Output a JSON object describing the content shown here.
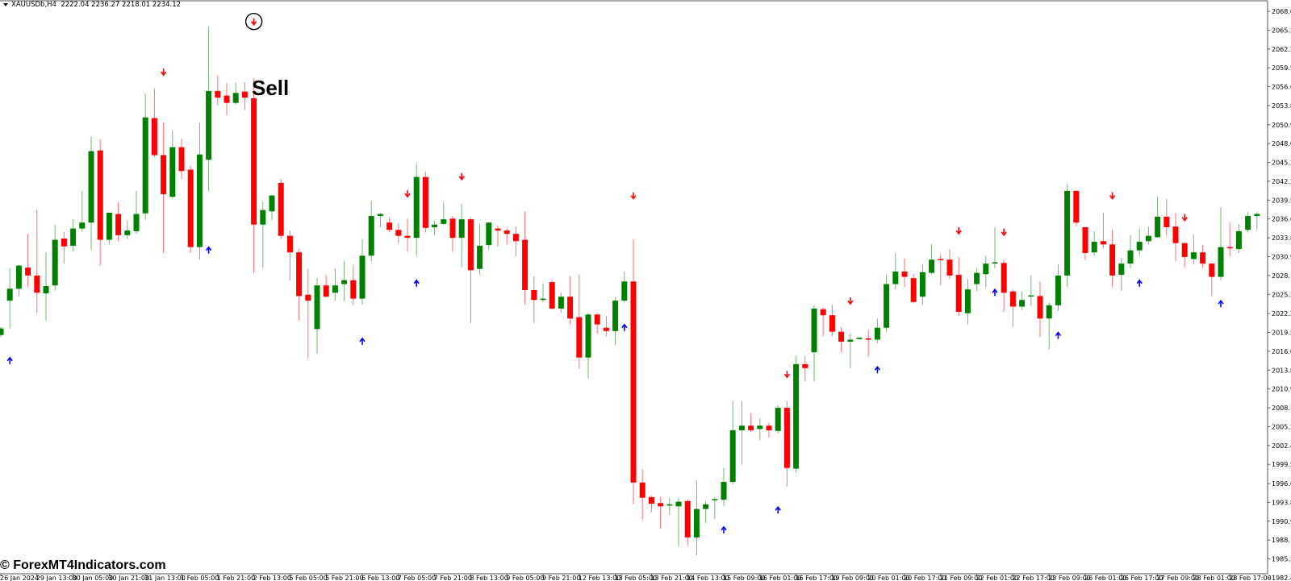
{
  "header": {
    "symbol": "XAUUSDb,H4",
    "ohlc": "2222.04 2236.27 2218.01 2234.12"
  },
  "annotation": {
    "label": "Sell",
    "circled_signal_index": 28
  },
  "watermark": "© ForexMT4Indicators.com",
  "colors": {
    "bull": "#008000",
    "bear": "#ff0000",
    "buy_arrow": "#0000ff",
    "sell_arrow": "#ff0000",
    "background": "#ffffff"
  },
  "chart_data": {
    "type": "candlestick",
    "timeframe": "H4",
    "ylim": [
      1982.4,
      2068.05
    ],
    "candle_format": [
      "open",
      "high",
      "low",
      "close"
    ],
    "candles": [
      [
        2019.1,
        2020.3,
        2018.8,
        2020.1
      ],
      [
        2024.3,
        2029.2,
        2020.1,
        2026.1
      ],
      [
        2026.1,
        2029.7,
        2024.9,
        2029.6
      ],
      [
        2029.3,
        2034.4,
        2026.3,
        2028.1
      ],
      [
        2028.1,
        2038.1,
        2022.4,
        2025.5
      ],
      [
        2025.4,
        2031.6,
        2021.3,
        2026.5
      ],
      [
        2026.6,
        2035.8,
        2025.8,
        2033.5
      ],
      [
        2033.7,
        2034.7,
        2029.9,
        2032.5
      ],
      [
        2032.6,
        2036.6,
        2031.7,
        2035.2
      ],
      [
        2035.2,
        2040.9,
        2034.7,
        2036.1
      ],
      [
        2036.1,
        2049.1,
        2032.0,
        2046.9
      ],
      [
        2047.0,
        2048.7,
        2029.6,
        2033.5
      ],
      [
        2033.5,
        2037.6,
        2032.8,
        2037.6
      ],
      [
        2037.4,
        2039.2,
        2033.3,
        2034.2
      ],
      [
        2034.2,
        2036.4,
        2033.6,
        2034.9
      ],
      [
        2034.8,
        2040.9,
        2034.4,
        2037.4
      ],
      [
        2037.5,
        2055.6,
        2036.5,
        2052.0
      ],
      [
        2051.9,
        2056.4,
        2046.0,
        2046.3
      ],
      [
        2046.3,
        2051.2,
        2031.5,
        2040.4
      ],
      [
        2040.0,
        2050.0,
        2039.7,
        2047.5
      ],
      [
        2047.5,
        2048.8,
        2042.7,
        2043.9
      ],
      [
        2044.1,
        2044.7,
        2031.5,
        2032.4
      ],
      [
        2032.4,
        2051.2,
        2030.5,
        2046.4
      ],
      [
        2045.6,
        2065.7,
        2040.8,
        2056.0
      ],
      [
        2056.0,
        2058.4,
        2053.8,
        2055.0
      ],
      [
        2055.3,
        2057.2,
        2052.3,
        2054.2
      ],
      [
        2054.2,
        2057.3,
        2053.9,
        2055.7
      ],
      [
        2055.9,
        2057.3,
        2053.1,
        2055.0
      ],
      [
        2054.9,
        2057.9,
        2028.5,
        2035.8
      ],
      [
        2035.8,
        2039.3,
        2029.2,
        2038.0
      ],
      [
        2037.8,
        2040.3,
        2036.5,
        2040.2
      ],
      [
        2042.1,
        2042.7,
        2033.6,
        2034.1
      ],
      [
        2034.1,
        2034.9,
        2027.4,
        2031.6
      ],
      [
        2031.6,
        2032.1,
        2021.3,
        2025.0
      ],
      [
        2025.2,
        2029.1,
        2015.5,
        2024.3
      ],
      [
        2020.0,
        2027.7,
        2016.3,
        2026.6
      ],
      [
        2026.6,
        2028.2,
        2024.7,
        2024.9
      ],
      [
        2025.5,
        2029.2,
        2024.3,
        2026.6
      ],
      [
        2026.8,
        2030.4,
        2024.2,
        2027.4
      ],
      [
        2027.4,
        2029.7,
        2023.6,
        2024.6
      ],
      [
        2024.6,
        2033.6,
        2023.7,
        2031.1
      ],
      [
        2031.1,
        2039.4,
        2030.2,
        2037.1
      ],
      [
        2037.1,
        2037.6,
        2035.4,
        2037.4
      ],
      [
        2036.1,
        2036.9,
        2034.7,
        2035.0
      ],
      [
        2035.0,
        2036.0,
        2033.0,
        2034.1
      ],
      [
        2034.1,
        2036.7,
        2031.7,
        2033.8
      ],
      [
        2033.8,
        2045.0,
        2031.1,
        2043.0
      ],
      [
        2043.0,
        2043.8,
        2034.6,
        2035.3
      ],
      [
        2035.4,
        2036.4,
        2034.2,
        2035.8
      ],
      [
        2035.9,
        2039.2,
        2035.8,
        2036.6
      ],
      [
        2036.7,
        2037.1,
        2031.7,
        2033.8
      ],
      [
        2033.8,
        2038.9,
        2029.4,
        2036.6
      ],
      [
        2036.6,
        2036.9,
        2020.9,
        2028.9
      ],
      [
        2029.1,
        2035.9,
        2028.2,
        2032.6
      ],
      [
        2032.7,
        2036.1,
        2032.0,
        2036.1
      ],
      [
        2035.2,
        2035.6,
        2032.5,
        2034.9
      ],
      [
        2034.9,
        2035.3,
        2032.8,
        2034.4
      ],
      [
        2034.4,
        2035.5,
        2031.0,
        2033.3
      ],
      [
        2033.5,
        2037.8,
        2023.7,
        2025.9
      ],
      [
        2025.9,
        2028.0,
        2020.9,
        2024.4
      ],
      [
        2024.4,
        2026.9,
        2024.1,
        2024.6
      ],
      [
        2027.1,
        2027.4,
        2023.0,
        2023.1
      ],
      [
        2023.1,
        2025.5,
        2022.5,
        2024.9
      ],
      [
        2024.9,
        2028.0,
        2020.7,
        2021.6
      ],
      [
        2021.8,
        2028.2,
        2014.0,
        2015.7
      ],
      [
        2015.7,
        2022.4,
        2012.6,
        2022.2
      ],
      [
        2022.2,
        2022.4,
        2019.3,
        2020.7
      ],
      [
        2020.2,
        2022.0,
        2018.9,
        2019.7
      ],
      [
        2019.7,
        2024.8,
        2017.6,
        2024.3
      ],
      [
        2024.3,
        2028.7,
        2024.0,
        2027.2
      ],
      [
        2027.2,
        2033.6,
        1993.5,
        1996.8
      ],
      [
        1996.8,
        1998.8,
        1991.2,
        1994.5
      ],
      [
        1994.6,
        1994.8,
        1992.3,
        1993.6
      ],
      [
        1993.7,
        1994.6,
        1989.8,
        1993.2
      ],
      [
        1993.4,
        1994.5,
        1991.9,
        1993.5
      ],
      [
        1993.2,
        1994.5,
        1987.2,
        1993.9
      ],
      [
        1994.0,
        1994.3,
        1987.3,
        1988.5
      ],
      [
        1988.5,
        1997.1,
        1985.8,
        1992.8
      ],
      [
        1992.8,
        1994.0,
        1990.7,
        1993.5
      ],
      [
        1994.2,
        1994.5,
        1991.3,
        1994.3
      ],
      [
        1994.2,
        1999.0,
        1993.2,
        1996.9
      ],
      [
        1996.9,
        2009.1,
        1996.5,
        2004.7
      ],
      [
        2004.7,
        2009.1,
        1999.5,
        2005.4
      ],
      [
        2005.4,
        2007.3,
        2004.4,
        2004.7
      ],
      [
        2004.9,
        2006.5,
        2003.2,
        2005.4
      ],
      [
        2005.4,
        2005.8,
        2003.6,
        2004.7
      ],
      [
        2004.6,
        2008.5,
        2004.2,
        2008.1
      ],
      [
        2008.1,
        2009.1,
        1996.2,
        1999.0
      ],
      [
        1998.9,
        2015.9,
        1998.3,
        2014.7
      ],
      [
        2014.7,
        2015.9,
        2012.1,
        2014.1
      ],
      [
        2016.5,
        2023.6,
        2012.1,
        2023.1
      ],
      [
        2023.0,
        2023.3,
        2018.9,
        2022.1
      ],
      [
        2022.1,
        2023.7,
        2018.9,
        2019.6
      ],
      [
        2019.6,
        2020.3,
        2016.5,
        2018.1
      ],
      [
        2018.1,
        2019.3,
        2014.1,
        2018.4
      ],
      [
        2018.5,
        2018.8,
        2018.4,
        2018.7
      ],
      [
        2018.6,
        2019.9,
        2015.8,
        2018.4
      ],
      [
        2018.4,
        2021.6,
        2017.9,
        2020.2
      ],
      [
        2020.2,
        2028.2,
        2019.6,
        2026.8
      ],
      [
        2026.8,
        2031.5,
        2026.0,
        2028.7
      ],
      [
        2028.7,
        2030.7,
        2026.3,
        2027.9
      ],
      [
        2027.7,
        2028.3,
        2024.0,
        2024.1
      ],
      [
        2024.9,
        2029.8,
        2023.6,
        2028.6
      ],
      [
        2028.5,
        2032.8,
        2028.2,
        2030.5
      ],
      [
        2030.6,
        2031.3,
        2026.6,
        2030.5
      ],
      [
        2030.5,
        2032.1,
        2027.6,
        2028.1
      ],
      [
        2028.2,
        2030.9,
        2022.0,
        2022.6
      ],
      [
        2022.4,
        2027.6,
        2020.7,
        2026.0
      ],
      [
        2026.8,
        2029.2,
        2025.7,
        2028.5
      ],
      [
        2028.3,
        2031.1,
        2026.3,
        2029.9
      ],
      [
        2030.0,
        2035.4,
        2029.2,
        2030.1
      ],
      [
        2030.0,
        2030.5,
        2022.6,
        2025.5
      ],
      [
        2025.7,
        2026.0,
        2020.3,
        2023.4
      ],
      [
        2023.4,
        2025.7,
        2022.9,
        2024.4
      ],
      [
        2025.0,
        2028.1,
        2023.5,
        2025.1
      ],
      [
        2025.0,
        2027.2,
        2018.8,
        2021.6
      ],
      [
        2021.6,
        2024.0,
        2016.9,
        2023.6
      ],
      [
        2023.6,
        2029.8,
        2022.7,
        2028.1
      ],
      [
        2028.1,
        2041.9,
        2026.4,
        2040.9
      ],
      [
        2040.9,
        2040.9,
        2035.6,
        2036.1
      ],
      [
        2035.4,
        2035.4,
        2030.4,
        2031.5
      ],
      [
        2031.6,
        2034.8,
        2031.1,
        2033.2
      ],
      [
        2033.3,
        2037.6,
        2032.2,
        2032.8
      ],
      [
        2032.8,
        2035.0,
        2026.3,
        2028.1
      ],
      [
        2028.2,
        2030.8,
        2025.8,
        2029.9
      ],
      [
        2029.9,
        2034.2,
        2029.2,
        2031.9
      ],
      [
        2031.9,
        2035.2,
        2031.1,
        2033.2
      ],
      [
        2033.3,
        2035.5,
        2032.8,
        2034.1
      ],
      [
        2033.9,
        2040.0,
        2033.8,
        2037.0
      ],
      [
        2037.0,
        2039.7,
        2034.1,
        2035.4
      ],
      [
        2035.5,
        2037.6,
        2030.3,
        2033.0
      ],
      [
        2033.0,
        2033.1,
        2029.3,
        2030.9
      ],
      [
        2030.6,
        2034.3,
        2029.8,
        2031.6
      ],
      [
        2031.6,
        2032.7,
        2029.2,
        2029.9
      ],
      [
        2029.9,
        2030.0,
        2025.0,
        2027.9
      ],
      [
        2027.9,
        2038.4,
        2027.4,
        2032.4
      ],
      [
        2032.4,
        2036.1,
        2031.0,
        2032.2
      ],
      [
        2032.1,
        2035.9,
        2031.5,
        2034.8
      ],
      [
        2035.0,
        2037.7,
        2034.6,
        2037.1
      ],
      [
        2037.1,
        2037.7,
        2035.0,
        2037.4
      ]
    ],
    "signals": [
      {
        "index": 1,
        "type": "buy",
        "price": 2015.2
      },
      {
        "index": 18,
        "type": "sell",
        "price": 2058.9
      },
      {
        "index": 23,
        "type": "buy",
        "price": 2031.9
      },
      {
        "index": 28,
        "type": "sell",
        "price": 2066.5
      },
      {
        "index": 40,
        "type": "buy",
        "price": 2018.1
      },
      {
        "index": 45,
        "type": "sell",
        "price": 2040.5
      },
      {
        "index": 46,
        "type": "buy",
        "price": 2026.9
      },
      {
        "index": 51,
        "type": "sell",
        "price": 2043.1
      },
      {
        "index": 69,
        "type": "buy",
        "price": 2020.2
      },
      {
        "index": 70,
        "type": "sell",
        "price": 2040.2
      },
      {
        "index": 80,
        "type": "buy",
        "price": 1989.6
      },
      {
        "index": 86,
        "type": "buy",
        "price": 1992.6
      },
      {
        "index": 87,
        "type": "sell",
        "price": 2013.2
      },
      {
        "index": 94,
        "type": "sell",
        "price": 2024.3
      },
      {
        "index": 97,
        "type": "buy",
        "price": 2013.8
      },
      {
        "index": 106,
        "type": "sell",
        "price": 2034.9
      },
      {
        "index": 110,
        "type": "buy",
        "price": 2025.5
      },
      {
        "index": 111,
        "type": "sell",
        "price": 2034.7
      },
      {
        "index": 117,
        "type": "buy",
        "price": 2019.0
      },
      {
        "index": 123,
        "type": "sell",
        "price": 2040.2
      },
      {
        "index": 126,
        "type": "buy",
        "price": 2026.9
      },
      {
        "index": 131,
        "type": "sell",
        "price": 2036.9
      },
      {
        "index": 135,
        "type": "buy",
        "price": 2023.8
      }
    ],
    "x_tick_labels": [
      "26 Jan 2024",
      "29 Jan 13:00",
      "30 Jan 05:00",
      "30 Jan 21:00",
      "31 Jan 13:00",
      "1 Feb 05:00",
      "1 Feb 21:00",
      "2 Feb 13:00",
      "5 Feb 05:00",
      "5 Feb 21:00",
      "6 Feb 13:00",
      "7 Feb 05:00",
      "7 Feb 21:00",
      "8 Feb 13:00",
      "9 Feb 05:00",
      "9 Feb 21:00",
      "12 Feb 13:00",
      "13 Feb 05:00",
      "13 Feb 21:00",
      "14 Feb 13:00",
      "15 Feb 09:00",
      "16 Feb 01:00",
      "16 Feb 17:00",
      "19 Feb 09:00",
      "20 Feb 01:00",
      "20 Feb 17:00",
      "21 Feb 09:00",
      "22 Feb 01:00",
      "22 Feb 17:00",
      "23 Feb 09:00",
      "26 Feb 01:00",
      "26 Feb 17:00",
      "27 Feb 09:00",
      "28 Feb 01:00",
      "28 Feb 17:00"
    ],
    "y_tick_labels": [
      "2068.05",
      "2065.20",
      "2062.35",
      "2059.50",
      "2056.65",
      "2053.80",
      "2050.90",
      "2048.05",
      "2045.20",
      "2042.35",
      "2039.50",
      "2036.65",
      "2033.80",
      "2030.95",
      "2028.10",
      "2025.25",
      "2022.35",
      "2019.50",
      "2016.65",
      "2013.80",
      "2010.95",
      "2008.10",
      "2005.25",
      "2002.40",
      "1999.55",
      "1996.65",
      "1993.80",
      "1990.95",
      "1988.10",
      "1985.25",
      "1982.40"
    ]
  }
}
